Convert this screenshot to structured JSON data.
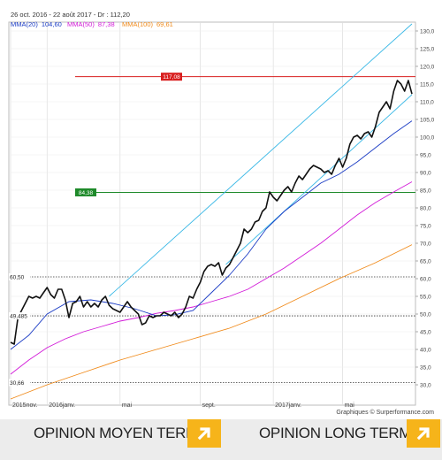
{
  "chart_data": {
    "type": "line",
    "header": "26 oct. 2016 - 22 août 2017 - Dr : 112,20",
    "legend": [
      {
        "name": "MMA(20)",
        "value": "104,60",
        "color": "#1a3bc4"
      },
      {
        "name": "MMA(50)",
        "value": "87,38",
        "color": "#d21ad8"
      },
      {
        "name": "MMA(100)",
        "value": "69,61",
        "color": "#f08a1a"
      }
    ],
    "source": "Graphiques © Surperformance.com",
    "ylim": [
      25,
      132
    ],
    "y_ticks": [
      30,
      35,
      40,
      45,
      50,
      55,
      60,
      65,
      70,
      75,
      80,
      85,
      90,
      95,
      100,
      105,
      110,
      115,
      120,
      125,
      130
    ],
    "x_ticks": [
      {
        "label": "2015nov.",
        "i": 0
      },
      {
        "label": "2016janv.",
        "i": 10
      },
      {
        "label": "mai",
        "i": 30
      },
      {
        "label": "sept.",
        "i": 52
      },
      {
        "label": "2017janv.",
        "i": 72
      },
      {
        "label": "mai",
        "i": 91
      }
    ],
    "x_count": 111,
    "price": [
      {
        "i": 0,
        "v": 42
      },
      {
        "i": 1,
        "v": 41.5
      },
      {
        "i": 2,
        "v": 49
      },
      {
        "i": 3,
        "v": 51
      },
      {
        "i": 4,
        "v": 53
      },
      {
        "i": 5,
        "v": 55
      },
      {
        "i": 6,
        "v": 54.5
      },
      {
        "i": 7,
        "v": 55
      },
      {
        "i": 8,
        "v": 54.5
      },
      {
        "i": 9,
        "v": 56
      },
      {
        "i": 10,
        "v": 57.5
      },
      {
        "i": 11,
        "v": 55.5
      },
      {
        "i": 12,
        "v": 54.5
      },
      {
        "i": 13,
        "v": 57
      },
      {
        "i": 14,
        "v": 57
      },
      {
        "i": 15,
        "v": 54
      },
      {
        "i": 16,
        "v": 49
      },
      {
        "i": 17,
        "v": 53
      },
      {
        "i": 18,
        "v": 53.5
      },
      {
        "i": 19,
        "v": 55
      },
      {
        "i": 20,
        "v": 52
      },
      {
        "i": 21,
        "v": 53.5
      },
      {
        "i": 22,
        "v": 52
      },
      {
        "i": 23,
        "v": 53
      },
      {
        "i": 24,
        "v": 52
      },
      {
        "i": 25,
        "v": 54
      },
      {
        "i": 26,
        "v": 55
      },
      {
        "i": 27,
        "v": 52.5
      },
      {
        "i": 28,
        "v": 51.5
      },
      {
        "i": 29,
        "v": 51
      },
      {
        "i": 30,
        "v": 50.5
      },
      {
        "i": 31,
        "v": 52
      },
      {
        "i": 32,
        "v": 53.5
      },
      {
        "i": 33,
        "v": 52
      },
      {
        "i": 34,
        "v": 51
      },
      {
        "i": 35,
        "v": 50
      },
      {
        "i": 36,
        "v": 47
      },
      {
        "i": 37,
        "v": 47.5
      },
      {
        "i": 38,
        "v": 49.5
      },
      {
        "i": 39,
        "v": 49
      },
      {
        "i": 40,
        "v": 49.5
      },
      {
        "i": 41,
        "v": 49.5
      },
      {
        "i": 42,
        "v": 50.5
      },
      {
        "i": 43,
        "v": 50
      },
      {
        "i": 44,
        "v": 49.5
      },
      {
        "i": 45,
        "v": 50.5
      },
      {
        "i": 46,
        "v": 49
      },
      {
        "i": 47,
        "v": 50
      },
      {
        "i": 48,
        "v": 52
      },
      {
        "i": 49,
        "v": 55
      },
      {
        "i": 50,
        "v": 54.5
      },
      {
        "i": 51,
        "v": 57
      },
      {
        "i": 52,
        "v": 59
      },
      {
        "i": 53,
        "v": 62
      },
      {
        "i": 54,
        "v": 63.5
      },
      {
        "i": 55,
        "v": 64
      },
      {
        "i": 56,
        "v": 63.5
      },
      {
        "i": 57,
        "v": 64.5
      },
      {
        "i": 58,
        "v": 61
      },
      {
        "i": 59,
        "v": 63
      },
      {
        "i": 60,
        "v": 64
      },
      {
        "i": 61,
        "v": 66
      },
      {
        "i": 62,
        "v": 68
      },
      {
        "i": 63,
        "v": 70
      },
      {
        "i": 64,
        "v": 74
      },
      {
        "i": 65,
        "v": 73
      },
      {
        "i": 66,
        "v": 74
      },
      {
        "i": 67,
        "v": 76
      },
      {
        "i": 68,
        "v": 76.5
      },
      {
        "i": 69,
        "v": 79
      },
      {
        "i": 70,
        "v": 80
      },
      {
        "i": 71,
        "v": 84.5
      },
      {
        "i": 72,
        "v": 83
      },
      {
        "i": 73,
        "v": 82
      },
      {
        "i": 74,
        "v": 83.5
      },
      {
        "i": 75,
        "v": 85
      },
      {
        "i": 76,
        "v": 86
      },
      {
        "i": 77,
        "v": 84.5
      },
      {
        "i": 78,
        "v": 87
      },
      {
        "i": 79,
        "v": 89
      },
      {
        "i": 80,
        "v": 88
      },
      {
        "i": 81,
        "v": 89.5
      },
      {
        "i": 82,
        "v": 91
      },
      {
        "i": 83,
        "v": 92
      },
      {
        "i": 84,
        "v": 91.5
      },
      {
        "i": 85,
        "v": 91
      },
      {
        "i": 86,
        "v": 90
      },
      {
        "i": 87,
        "v": 90.5
      },
      {
        "i": 88,
        "v": 89.5
      },
      {
        "i": 89,
        "v": 92
      },
      {
        "i": 90,
        "v": 94
      },
      {
        "i": 91,
        "v": 91.5
      },
      {
        "i": 92,
        "v": 94
      },
      {
        "i": 93,
        "v": 98
      },
      {
        "i": 94,
        "v": 100
      },
      {
        "i": 95,
        "v": 100.5
      },
      {
        "i": 96,
        "v": 99.5
      },
      {
        "i": 97,
        "v": 101
      },
      {
        "i": 98,
        "v": 101.5
      },
      {
        "i": 99,
        "v": 100
      },
      {
        "i": 100,
        "v": 103
      },
      {
        "i": 101,
        "v": 107
      },
      {
        "i": 102,
        "v": 108.5
      },
      {
        "i": 103,
        "v": 110
      },
      {
        "i": 104,
        "v": 108
      },
      {
        "i": 105,
        "v": 113
      },
      {
        "i": 106,
        "v": 116
      },
      {
        "i": 107,
        "v": 115
      },
      {
        "i": 108,
        "v": 113
      },
      {
        "i": 109,
        "v": 116
      },
      {
        "i": 110,
        "v": 112.2
      }
    ],
    "mma20": [
      {
        "i": 0,
        "v": 40
      },
      {
        "i": 5,
        "v": 44
      },
      {
        "i": 10,
        "v": 50
      },
      {
        "i": 16,
        "v": 53.5
      },
      {
        "i": 22,
        "v": 54
      },
      {
        "i": 28,
        "v": 53
      },
      {
        "i": 34,
        "v": 51.5
      },
      {
        "i": 40,
        "v": 49.5
      },
      {
        "i": 45,
        "v": 49.8
      },
      {
        "i": 50,
        "v": 51
      },
      {
        "i": 55,
        "v": 56
      },
      {
        "i": 60,
        "v": 61
      },
      {
        "i": 65,
        "v": 67
      },
      {
        "i": 70,
        "v": 74
      },
      {
        "i": 75,
        "v": 79
      },
      {
        "i": 80,
        "v": 83
      },
      {
        "i": 85,
        "v": 87
      },
      {
        "i": 90,
        "v": 89.5
      },
      {
        "i": 95,
        "v": 93
      },
      {
        "i": 100,
        "v": 97
      },
      {
        "i": 105,
        "v": 101
      },
      {
        "i": 110,
        "v": 104.6
      }
    ],
    "mma50": [
      {
        "i": 0,
        "v": 33
      },
      {
        "i": 5,
        "v": 37
      },
      {
        "i": 10,
        "v": 40.5
      },
      {
        "i": 15,
        "v": 43
      },
      {
        "i": 20,
        "v": 45
      },
      {
        "i": 25,
        "v": 46.5
      },
      {
        "i": 30,
        "v": 48
      },
      {
        "i": 35,
        "v": 49
      },
      {
        "i": 40,
        "v": 50.2
      },
      {
        "i": 45,
        "v": 51
      },
      {
        "i": 50,
        "v": 52
      },
      {
        "i": 55,
        "v": 53.5
      },
      {
        "i": 60,
        "v": 55
      },
      {
        "i": 65,
        "v": 57
      },
      {
        "i": 70,
        "v": 60
      },
      {
        "i": 75,
        "v": 63
      },
      {
        "i": 80,
        "v": 66.5
      },
      {
        "i": 85,
        "v": 70
      },
      {
        "i": 90,
        "v": 74
      },
      {
        "i": 95,
        "v": 78
      },
      {
        "i": 100,
        "v": 81.5
      },
      {
        "i": 105,
        "v": 84.5
      },
      {
        "i": 110,
        "v": 87.38
      }
    ],
    "mma100": [
      {
        "i": 0,
        "v": 26
      },
      {
        "i": 10,
        "v": 30
      },
      {
        "i": 20,
        "v": 33.5
      },
      {
        "i": 30,
        "v": 37
      },
      {
        "i": 40,
        "v": 40
      },
      {
        "i": 50,
        "v": 43
      },
      {
        "i": 60,
        "v": 46
      },
      {
        "i": 70,
        "v": 50
      },
      {
        "i": 80,
        "v": 55
      },
      {
        "i": 90,
        "v": 60
      },
      {
        "i": 100,
        "v": 64.5
      },
      {
        "i": 110,
        "v": 69.61
      }
    ],
    "trend_lines": [
      {
        "from": {
          "i": 27,
          "v": 55
        },
        "to": {
          "i": 110,
          "v": 132
        }
      },
      {
        "from": {
          "i": 59,
          "v": 64
        },
        "to": {
          "i": 110,
          "v": 112
        }
      }
    ],
    "levels": [
      {
        "value": 117.08,
        "label": "117,08",
        "style": "solid",
        "color": "#d81e1e"
      },
      {
        "value": 84.38,
        "label": "84,38",
        "style": "solid",
        "color": "#1e8a2a"
      },
      {
        "value": 60.5,
        "label": "60,50",
        "style": "dotted",
        "color": "#333333"
      },
      {
        "value": 49.485,
        "label": "49,485",
        "style": "dotted",
        "color": "#333333"
      },
      {
        "value": 30.66,
        "label": "30,66",
        "style": "dotted",
        "color": "#333333"
      }
    ]
  },
  "footer": {
    "opinion_medium": "OPINION MOYEN TERME",
    "opinion_long": "OPINION LONG TERME",
    "arrow_icon": "arrow-up-right-icon",
    "accent": "#f6b41a"
  }
}
